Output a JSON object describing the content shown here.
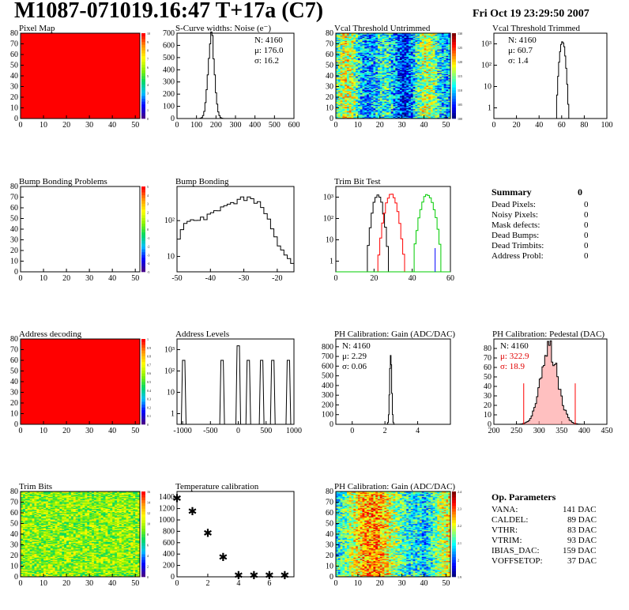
{
  "title": "M1087-071019.16:47 T+17a (C7)",
  "date": "Fri Oct 19 23:29:50 2007",
  "colors": {
    "red": "#ff0000",
    "hist": "#000000",
    "trim": "#ff0000",
    "trimg": "#00cc00",
    "trimb": "#0000ff"
  },
  "chart_data": [
    {
      "type": "heatmap",
      "title": "Pixel Map",
      "xticks": [
        "0",
        "10",
        "20",
        "30",
        "40",
        "50"
      ],
      "yticks": [
        "0",
        "10",
        "20",
        "30",
        "40",
        "50",
        "60",
        "70",
        "80"
      ],
      "xlim": [
        0,
        52
      ],
      "ylim": [
        0,
        80
      ],
      "fill": "uniform-red",
      "scale": [
        "0",
        "1",
        "2",
        "3",
        "4",
        "5",
        "6",
        "7",
        "8",
        "9",
        "10"
      ]
    },
    {
      "type": "line",
      "title": "S-Curve widths: Noise (e⁻)",
      "xticks": [
        "0",
        "100",
        "200",
        "300",
        "400",
        "500",
        "600"
      ],
      "yticks": [
        "0",
        "100",
        "200",
        "300",
        "400",
        "500",
        "600",
        "700"
      ],
      "xlim": [
        0,
        600
      ],
      "ylim": [
        0,
        700
      ],
      "stats": {
        "n": "N: 4160",
        "mu": "μ: 176.0",
        "sigma": "σ: 16.2"
      },
      "peak": [
        176,
        680
      ]
    },
    {
      "type": "heatmap",
      "title": "Vcal Threshold Untrimmed",
      "xticks": [
        "0",
        "10",
        "20",
        "30",
        "40",
        "50"
      ],
      "yticks": [
        "0",
        "10",
        "20",
        "30",
        "40",
        "50",
        "60",
        "70",
        "80"
      ],
      "xlim": [
        0,
        52
      ],
      "ylim": [
        0,
        80
      ],
      "scale": [
        "100",
        "105",
        "110",
        "115",
        "120",
        "125",
        "130"
      ]
    },
    {
      "type": "line",
      "title": "Vcal Threshold Trimmed",
      "xticks": [
        "0",
        "20",
        "40",
        "60",
        "80",
        "100"
      ],
      "yticks": [
        "1",
        "10",
        "10²",
        "10³"
      ],
      "xlim": [
        0,
        100
      ],
      "log": true,
      "stats": {
        "n": "N: 4160",
        "mu": "μ: 60.7",
        "sigma": "σ:  1.4"
      },
      "peak": [
        60.7,
        1300
      ]
    },
    {
      "type": "heatmap",
      "title": "Bump Bonding Problems",
      "xticks": [
        "0",
        "10",
        "20",
        "30",
        "40",
        "50"
      ],
      "yticks": [
        "0",
        "10",
        "20",
        "30",
        "40",
        "50",
        "60",
        "70",
        "80"
      ],
      "xlim": [
        0,
        52
      ],
      "ylim": [
        0,
        80
      ],
      "fill": "empty",
      "scale": [
        "-5",
        "-4",
        "-3",
        "-2",
        "-1",
        "0",
        "1",
        "2",
        "3",
        "4",
        "5"
      ]
    },
    {
      "type": "line",
      "title": "Bump Bonding",
      "xticks": [
        "-50",
        "-40",
        "-30",
        "-20"
      ],
      "yticks": [
        "10",
        "10²"
      ],
      "xlim": [
        -50,
        -15
      ],
      "log": true
    },
    {
      "type": "line",
      "title": "Trim Bit Test",
      "xticks": [
        "0",
        "20",
        "40",
        "60"
      ],
      "yticks": [
        "1",
        "10",
        "10²",
        "10³"
      ],
      "xlim": [
        0,
        60
      ],
      "log": true
    },
    {
      "type": "line",
      "title": "Address decoding",
      "xticks": [
        "0",
        "10",
        "20",
        "30",
        "40",
        "50"
      ],
      "yticks": [
        "0",
        "10",
        "20",
        "30",
        "40",
        "50",
        "60",
        "70",
        "80"
      ],
      "xlim": [
        0,
        52
      ],
      "ylim": [
        0,
        80
      ],
      "fill": "uniform-red",
      "scale": [
        "0",
        "0.1",
        "0.2",
        "0.3",
        "0.4",
        "0.5",
        "0.6",
        "0.7",
        "0.8",
        "0.9",
        "1"
      ]
    },
    {
      "type": "line",
      "title": "Address Levels",
      "xticks": [
        "-1000",
        "-500",
        "0",
        "500",
        "1000"
      ],
      "yticks": [
        "1",
        "10",
        "10²",
        "10³"
      ],
      "xlim": [
        -1100,
        1000
      ],
      "log": true,
      "peaks": [
        -980,
        -290,
        0,
        180,
        420,
        620,
        900
      ]
    },
    {
      "type": "line",
      "title": "PH Calibration: Gain (ADC/DAC)",
      "xticks": [
        "0",
        "2",
        "4"
      ],
      "yticks": [
        "0",
        "100",
        "200",
        "300",
        "400",
        "500",
        "600",
        "700",
        "800"
      ],
      "xlim": [
        -1,
        6
      ],
      "ylim": [
        0,
        880
      ],
      "stats": {
        "n": "N: 4160",
        "mu": "μ: 2.29",
        "sigma": "σ: 0.06"
      },
      "peak": [
        2.35,
        740
      ]
    },
    {
      "type": "line",
      "title": "PH Calibration: Pedestal (DAC)",
      "xticks": [
        "200",
        "250",
        "300",
        "350",
        "400",
        "450"
      ],
      "yticks": [
        "0",
        "10",
        "20",
        "30",
        "40",
        "50",
        "60",
        "70",
        "80"
      ],
      "xlim": [
        200,
        450
      ],
      "ylim": [
        0,
        90
      ],
      "stats": {
        "n": "N: 4160",
        "mu": "μ: 322.9",
        "sigma": "σ: 18.9"
      },
      "peak": [
        322.9,
        80
      ]
    },
    {
      "type": "heatmap",
      "title": "Trim Bits",
      "xticks": [
        "0",
        "10",
        "20",
        "30",
        "40",
        "50"
      ],
      "yticks": [
        "0",
        "10",
        "20",
        "30",
        "40",
        "50",
        "60",
        "70",
        "80"
      ],
      "xlim": [
        0,
        52
      ],
      "ylim": [
        0,
        80
      ],
      "scale": [
        "0",
        "2",
        "4",
        "6",
        "8",
        "10",
        "12",
        "14",
        "16"
      ]
    },
    {
      "type": "scatter",
      "title": "Temperature calibration",
      "xticks": [
        "0",
        "2",
        "4",
        "6"
      ],
      "yticks": [
        "0",
        "200",
        "400",
        "600",
        "800",
        "1000",
        "1200",
        "1400"
      ],
      "xlim": [
        0,
        7.6
      ],
      "ylim": [
        0,
        1500
      ],
      "x": [
        0,
        1,
        2,
        3,
        4,
        5,
        6,
        7
      ],
      "y": [
        1380,
        1150,
        770,
        350,
        30,
        30,
        30,
        25
      ]
    },
    {
      "type": "heatmap",
      "title": "PH Calibration: Gain (ADC/DAC)",
      "xticks": [
        "0",
        "10",
        "20",
        "30",
        "40",
        "50"
      ],
      "yticks": [
        "0",
        "10",
        "20",
        "30",
        "40",
        "50",
        "60",
        "70",
        "80"
      ],
      "xlim": [
        0,
        52
      ],
      "ylim": [
        0,
        80
      ],
      "scale": [
        "1.9",
        "2",
        "2.1",
        "2.2",
        "2.3",
        "2.4"
      ]
    }
  ],
  "summary": {
    "title": "Summary",
    "total": "0",
    "rows": [
      {
        "label": "Dead Pixels:",
        "value": "0"
      },
      {
        "label": "Noisy Pixels:",
        "value": "0"
      },
      {
        "label": "Mask defects:",
        "value": "0"
      },
      {
        "label": "Dead Bumps:",
        "value": "0"
      },
      {
        "label": "Dead Trimbits:",
        "value": "0"
      },
      {
        "label": "Address Probl:",
        "value": "0"
      }
    ]
  },
  "op_params": {
    "title": "Op. Parameters",
    "rows": [
      {
        "label": "VANA:",
        "value": "141 DAC"
      },
      {
        "label": "CALDEL:",
        "value": "89 DAC"
      },
      {
        "label": "VTHR:",
        "value": "83 DAC"
      },
      {
        "label": "VTRIM:",
        "value": "93 DAC"
      },
      {
        "label": "IBIAS_DAC:",
        "value": "159 DAC"
      },
      {
        "label": "VOFFSETOP:",
        "value": "37 DAC"
      }
    ]
  }
}
